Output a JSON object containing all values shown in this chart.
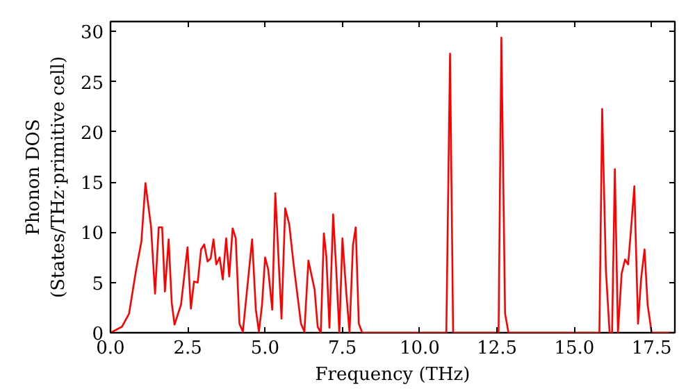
{
  "chart_data": {
    "type": "line",
    "xlabel": "Frequency (THz)",
    "ylabel": "Phonon DOS\n(States/THz·primitive cell)",
    "x": [
      0,
      0.37,
      0.6,
      0.83,
      1.0,
      1.13,
      1.31,
      1.44,
      1.56,
      1.67,
      1.76,
      1.88,
      1.98,
      2.07,
      2.28,
      2.49,
      2.6,
      2.7,
      2.82,
      2.93,
      3.03,
      3.14,
      3.24,
      3.33,
      3.42,
      3.53,
      3.63,
      3.74,
      3.84,
      3.95,
      4.05,
      4.17,
      4.28,
      4.58,
      4.7,
      4.8,
      4.9,
      5.0,
      5.1,
      5.23,
      5.33,
      5.53,
      5.65,
      5.78,
      5.93,
      6.16,
      6.27,
      6.4,
      6.6,
      6.7,
      6.8,
      6.9,
      6.98,
      7.08,
      7.2,
      7.3,
      7.4,
      7.5,
      7.63,
      7.73,
      7.84,
      7.93,
      8.03,
      8.14,
      10.86,
      10.98,
      11.08,
      12.55,
      12.64,
      12.76,
      12.87,
      15.81,
      15.9,
      16.02,
      16.14,
      16.22,
      16.31,
      16.41,
      16.53,
      16.64,
      16.74,
      16.83,
      16.94,
      17.06,
      17.16,
      17.27,
      17.37,
      17.5,
      18.25
    ],
    "series": [
      {
        "color": "#ff0000",
        "values": [
          0,
          0.6,
          1.9,
          6.3,
          9.1,
          14.9,
          10.6,
          3.9,
          10.5,
          10.5,
          4.1,
          9.3,
          3.0,
          0.8,
          2.8,
          8.5,
          2.4,
          5.1,
          5.0,
          8.3,
          8.8,
          7.1,
          7.4,
          9.3,
          6.8,
          7.5,
          5.3,
          9.4,
          5.6,
          10.4,
          9.4,
          0.9,
          0.1,
          9.3,
          2.3,
          0.1,
          2.8,
          7.5,
          6.3,
          2.3,
          13.9,
          1.4,
          12.4,
          10.8,
          6.6,
          0.9,
          0.1,
          7.2,
          4.3,
          0.6,
          0,
          9.9,
          7.6,
          0.5,
          11.8,
          6.3,
          0,
          9.4,
          3.8,
          0,
          8.7,
          10.5,
          0.9,
          0,
          0,
          27.8,
          0,
          0,
          29.4,
          1.9,
          0,
          0,
          22.3,
          6.3,
          0,
          0,
          16.3,
          0,
          5.9,
          7.3,
          6.8,
          10.2,
          14.6,
          0.9,
          5.4,
          8.3,
          2.8,
          0,
          0
        ]
      }
    ],
    "xlim": [
      0,
      18.25
    ],
    "xticks": [
      {
        "value": 0,
        "label": "0.0"
      },
      2.5,
      {
        "value": 5,
        "label": "5.0"
      },
      7.5,
      {
        "value": 10,
        "label": "10.0"
      },
      12.5,
      {
        "value": 15,
        "label": "15.0"
      },
      17.5
    ],
    "ylim": [
      0,
      31
    ],
    "yticks": [
      0,
      5,
      10,
      15,
      20,
      25,
      30
    ],
    "line_style": "solid",
    "marker": "none",
    "grid": false
  }
}
